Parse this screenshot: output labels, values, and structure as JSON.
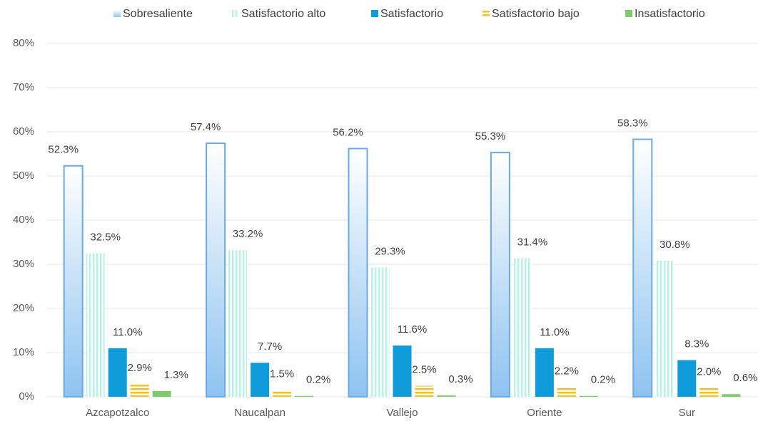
{
  "chart_data": {
    "type": "bar",
    "categories": [
      "Azcapotzalco",
      "Naucalpan",
      "Vallejo",
      "Oriente",
      "Sur"
    ],
    "series": [
      {
        "name": "Sobresaliente",
        "color": "#8ec3f0",
        "values": [
          52.3,
          57.4,
          56.2,
          55.3,
          58.3
        ],
        "value_labels": [
          "52.3%",
          "57.4%",
          "56.2%",
          "55.3%",
          "58.3%"
        ]
      },
      {
        "name": "Satisfactorio alto",
        "color": "#b8f2e6",
        "values": [
          32.5,
          33.2,
          29.3,
          31.4,
          30.8
        ],
        "value_labels": [
          "32.5%",
          "33.2%",
          "29.3%",
          "31.4%",
          "30.8%"
        ]
      },
      {
        "name": "Satisfactorio",
        "color": "#0f9bd9",
        "values": [
          11.0,
          7.7,
          11.6,
          11.0,
          8.3
        ],
        "value_labels": [
          "11.0%",
          "7.7%",
          "11.6%",
          "11.0%",
          "8.3%"
        ]
      },
      {
        "name": "Satisfactorio bajo",
        "color": "#f5c21b",
        "values": [
          2.9,
          1.5,
          2.5,
          2.2,
          2.0
        ],
        "value_labels": [
          "2.9%",
          "1.5%",
          "2.5%",
          "2.2%",
          "2.0%"
        ]
      },
      {
        "name": "Insatisfactorio",
        "color": "#7ccb6a",
        "values": [
          1.3,
          0.2,
          0.3,
          0.2,
          0.6
        ],
        "value_labels": [
          "1.3%",
          "0.2%",
          "0.3%",
          "0.2%",
          "0.6%"
        ]
      }
    ],
    "ylim": [
      0,
      80
    ],
    "yticks": [
      {
        "value": 0,
        "label": "0%"
      },
      {
        "value": 10,
        "label": "10%"
      },
      {
        "value": 20,
        "label": "20%"
      },
      {
        "value": 30,
        "label": "30%"
      },
      {
        "value": 40,
        "label": "40%"
      },
      {
        "value": 50,
        "label": "50%"
      },
      {
        "value": 60,
        "label": "60%"
      },
      {
        "value": 70,
        "label": "70%"
      },
      {
        "value": 80,
        "label": "80%"
      }
    ],
    "grid": true,
    "legend": "top"
  }
}
